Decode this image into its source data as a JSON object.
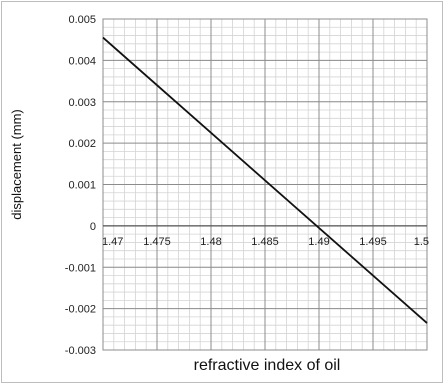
{
  "chart_data": {
    "type": "line",
    "title": "",
    "xlabel": "refractive index of oil",
    "ylabel": "displacement (mm)",
    "xlim": [
      1.47,
      1.5
    ],
    "ylim": [
      -0.003,
      0.005
    ],
    "x_ticks": [
      "1.47",
      "1.475",
      "1.48",
      "1.485",
      "1.49",
      "1.495",
      "1.5"
    ],
    "y_ticks": [
      "0.005",
      "0.004",
      "0.003",
      "0.002",
      "0.001",
      "0",
      "-0.001",
      "-0.002",
      "-0.003"
    ],
    "grid": true,
    "series": [
      {
        "x": [
          1.47,
          1.5
        ],
        "y": [
          0.00455,
          -0.00235
        ]
      }
    ],
    "colors": {
      "line": "#111111",
      "major_grid": "#8c8c8c",
      "minor_grid": "#d4d4d4",
      "axis": "#555555"
    }
  }
}
